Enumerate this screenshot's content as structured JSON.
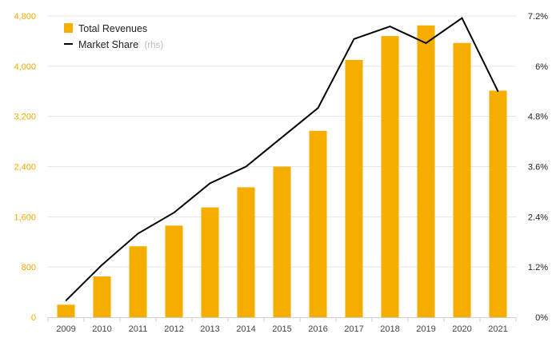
{
  "chart_data": {
    "type": "bar",
    "categories": [
      "2009",
      "2010",
      "2011",
      "2012",
      "2013",
      "2014",
      "2015",
      "2016",
      "2017",
      "2018",
      "2019",
      "2020",
      "2021"
    ],
    "series": [
      {
        "name": "Total Revenues",
        "type": "bar",
        "axis": "left",
        "color": "#f5ad00",
        "values": [
          200,
          650,
          1130,
          1460,
          1750,
          2070,
          2400,
          2970,
          4100,
          4480,
          4650,
          4370,
          3610
        ]
      },
      {
        "name": "Market Share",
        "type": "line",
        "axis": "right",
        "color": "#000000",
        "values": [
          0.4,
          1.25,
          2.0,
          2.5,
          3.2,
          3.6,
          4.3,
          5.0,
          6.65,
          6.95,
          6.55,
          7.15,
          5.4
        ]
      }
    ],
    "y_left": {
      "ylim": [
        0,
        4800
      ],
      "ticks": [
        "0",
        "800",
        "1,600",
        "2,400",
        "3,200",
        "4,000",
        "4,800"
      ],
      "tick_values": [
        0,
        800,
        1600,
        2400,
        3200,
        4000,
        4800
      ]
    },
    "y_right": {
      "ylim": [
        0,
        7.2
      ],
      "ticks": [
        "0%",
        "1.2%",
        "2.4%",
        "3.6%",
        "4.8%",
        "6%",
        "7.2%"
      ],
      "tick_values": [
        0,
        1.2,
        2.4,
        3.6,
        4.8,
        6.0,
        7.2
      ]
    },
    "legend": {
      "position": "top-left",
      "items": [
        {
          "label": "Total Revenues",
          "suffix": ""
        },
        {
          "label": "Market Share",
          "suffix": "(rhs)"
        }
      ]
    },
    "grid": true
  }
}
